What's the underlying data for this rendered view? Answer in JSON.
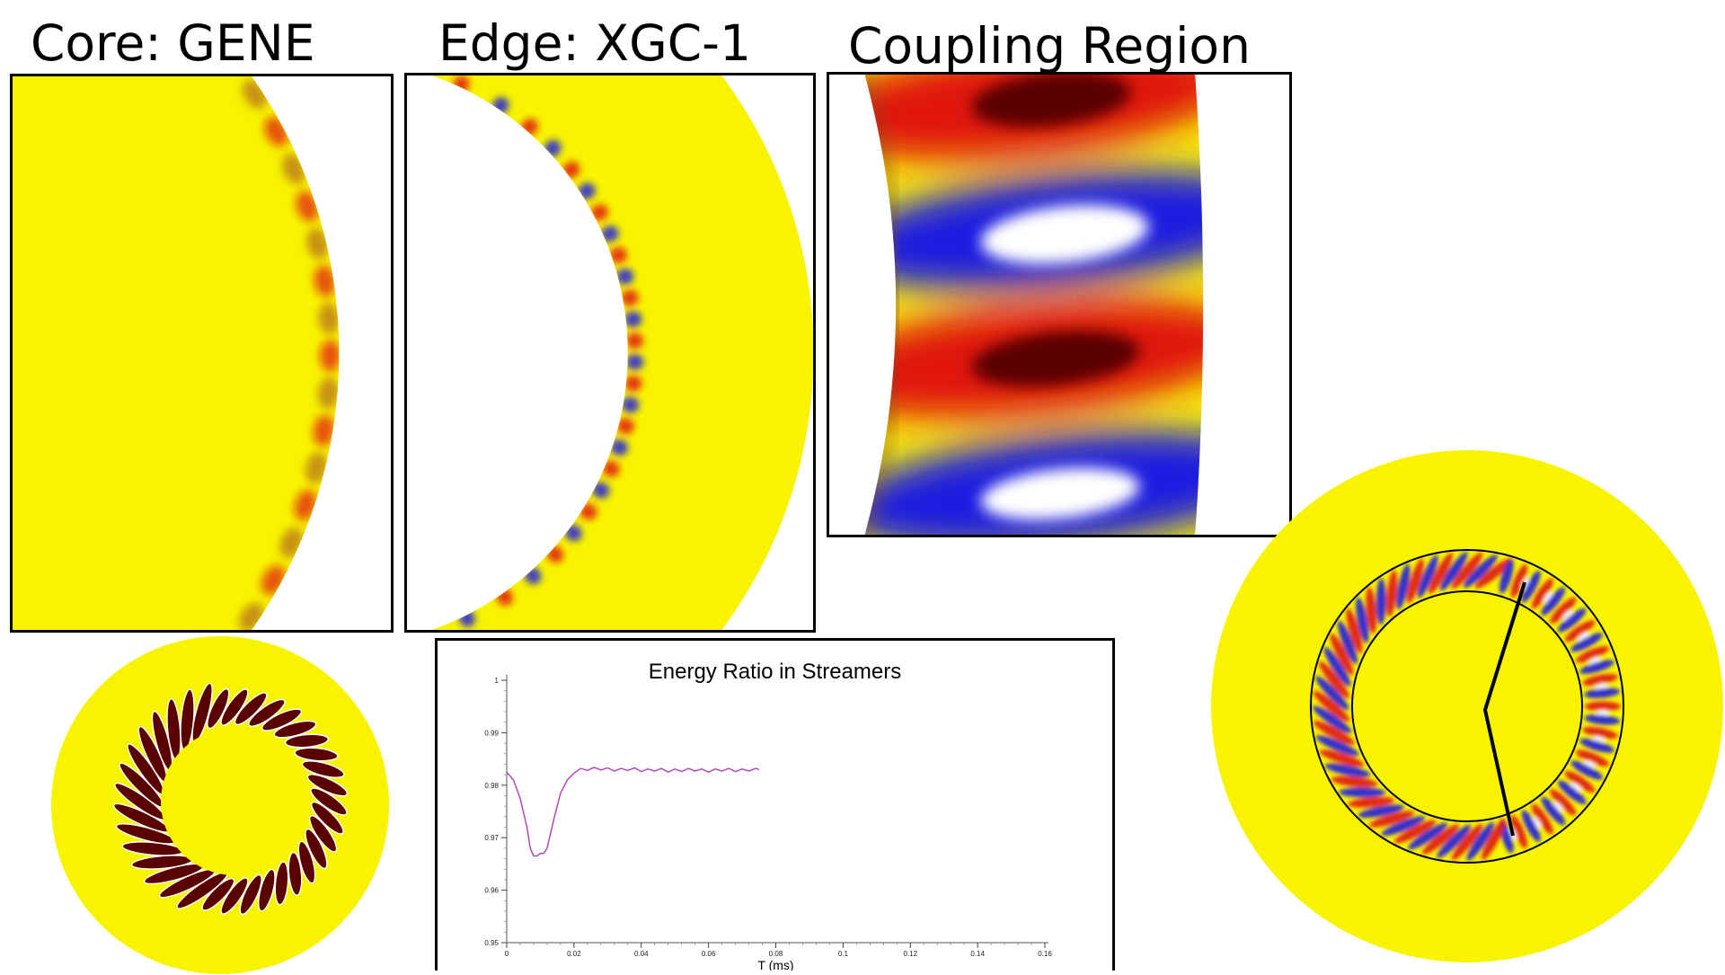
{
  "titles": {
    "core": "Core: GENE",
    "edge": "Edge: XGC-1",
    "coupling": "Coupling Region"
  },
  "colors": {
    "field_background": "#f8f400",
    "positive_max": "#5a0000",
    "positive": "#e0140a",
    "negative": "#1e1ee0",
    "negative_peak": "#ffffff",
    "trace": "#b03cb8"
  },
  "chart_data": {
    "type": "line",
    "title": "Energy Ratio in Streamers",
    "xlabel": "T (ms)",
    "ylabel": "",
    "xlim": [
      0,
      0.16
    ],
    "ylim": [
      0.95,
      1.0
    ],
    "x_ticks": [
      "0",
      "0.02",
      "0.04",
      "0.06",
      "0.08",
      "0.1",
      "0.12",
      "0.14",
      "0.16"
    ],
    "y_ticks": [
      "0.95",
      "0.96",
      "0.97",
      "0.98",
      "0.99",
      "1"
    ],
    "grid": false,
    "series": [
      {
        "x": [
          0,
          0.002,
          0.004,
          0.006,
          0.007,
          0.008,
          0.009,
          0.01,
          0.011,
          0.012,
          0.014,
          0.016,
          0.018,
          0.02,
          0.022,
          0.024,
          0.026,
          0.028,
          0.03,
          0.032,
          0.034,
          0.036,
          0.038,
          0.04,
          0.042,
          0.044,
          0.046,
          0.048,
          0.05,
          0.052,
          0.054,
          0.056,
          0.058,
          0.06,
          0.062,
          0.064,
          0.066,
          0.068,
          0.07,
          0.072,
          0.074,
          0.075
        ],
        "y": [
          0.9825,
          0.981,
          0.9775,
          0.972,
          0.968,
          0.9665,
          0.9665,
          0.967,
          0.967,
          0.968,
          0.9735,
          0.9785,
          0.981,
          0.9823,
          0.9832,
          0.9828,
          0.9834,
          0.9829,
          0.9833,
          0.9827,
          0.9832,
          0.9828,
          0.9833,
          0.9826,
          0.9831,
          0.9827,
          0.9832,
          0.9825,
          0.9831,
          0.9826,
          0.9832,
          0.9827,
          0.9831,
          0.9825,
          0.9831,
          0.9827,
          0.9832,
          0.9826,
          0.9831,
          0.9827,
          0.9832,
          0.983
        ]
      }
    ]
  }
}
